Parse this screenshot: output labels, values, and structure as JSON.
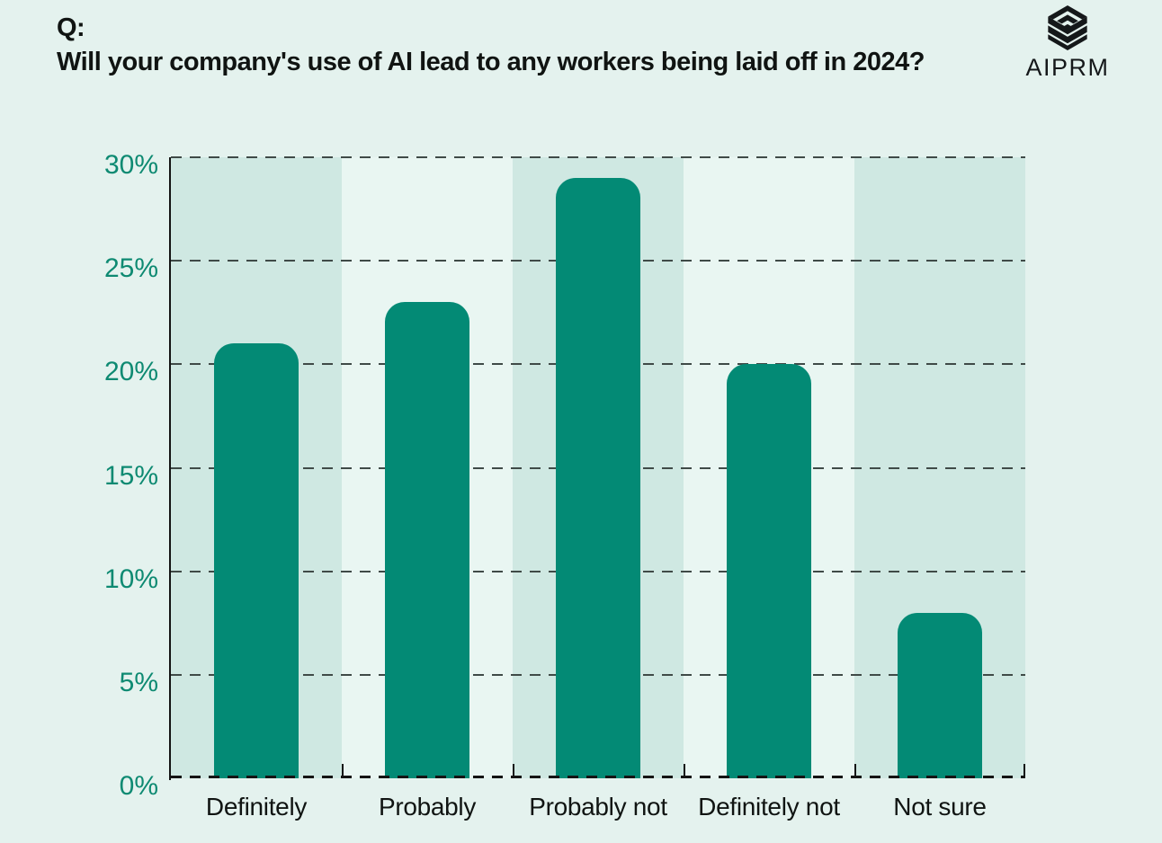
{
  "header": {
    "prefix": "Q:",
    "title": "Will your company's use of AI lead to any workers being laid off in 2024?"
  },
  "brand": {
    "name": "AIPRM",
    "logo_icon": "aiprm-striped-cube-logo"
  },
  "chart_data": {
    "type": "bar",
    "title": "Will your company's use of AI lead to any workers being laid off in 2024?",
    "categories": [
      "Definitely",
      "Probably",
      "Probably not",
      "Definitely not",
      "Not sure"
    ],
    "values": [
      21,
      23,
      29,
      20,
      8
    ],
    "xlabel": "",
    "ylabel": "",
    "ylim": [
      0,
      30
    ],
    "ytick_step": 5,
    "ytick_suffix": "%",
    "ytick_labels": [
      "0%",
      "5%",
      "10%",
      "15%",
      "20%",
      "25%",
      "30%"
    ],
    "grid": "horizontal-dashed",
    "legend": "none",
    "colors": {
      "bar": "#038a75",
      "column_band_dark": "#cfe8e2",
      "column_band_light": "#e9f6f2",
      "page_background": "#e4f2ee",
      "gridline": "#3f4a47",
      "axis": "#141414",
      "ytick_label": "#0e8a72",
      "xtick_label": "#101412"
    }
  }
}
